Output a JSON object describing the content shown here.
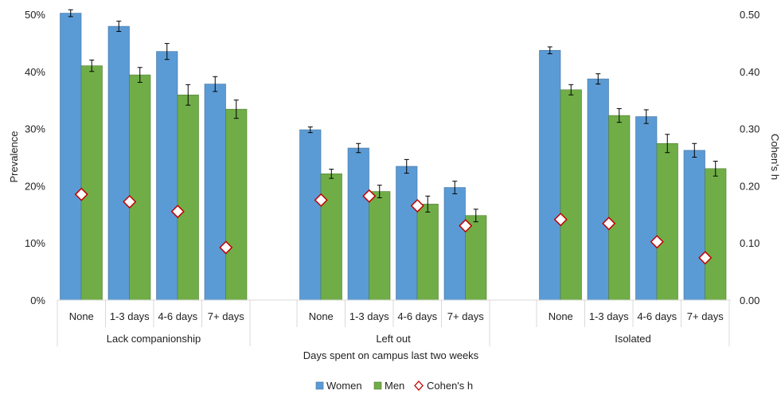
{
  "chart_data": {
    "type": "bar",
    "xlabel": "Days spent on campus last two weeks",
    "ylabel": "Prevalence",
    "y2label": "Cohen's h",
    "ylim": [
      0,
      50
    ],
    "y2lim": [
      0,
      0.5
    ],
    "yticks": [
      "0%",
      "10%",
      "20%",
      "30%",
      "40%",
      "50%"
    ],
    "y2ticks": [
      "0.00",
      "0.10",
      "0.20",
      "0.30",
      "0.40",
      "0.50"
    ],
    "grid": false,
    "legend_position": "bottom",
    "groups": [
      {
        "name": "Lack companionship",
        "categories": [
          "None",
          "1-3 days",
          "4-6 days",
          "7+ days"
        ]
      },
      {
        "name": "Left out",
        "categories": [
          "None",
          "1-3 days",
          "4-6 days",
          "7+ days"
        ]
      },
      {
        "name": "Isolated",
        "categories": [
          "None",
          "1-3 days",
          "4-6 days",
          "7+ days"
        ]
      }
    ],
    "series": [
      {
        "name": "Women",
        "color": "#5b9bd5",
        "values": [
          50.2,
          47.9,
          43.5,
          37.8,
          29.8,
          26.6,
          23.4,
          19.7,
          43.7,
          38.7,
          32.1,
          26.2
        ],
        "errors": [
          0.6,
          0.9,
          1.4,
          1.3,
          0.5,
          0.8,
          1.2,
          1.1,
          0.6,
          0.9,
          1.2,
          1.2
        ]
      },
      {
        "name": "Men",
        "color": "#70ad47",
        "values": [
          41.0,
          39.4,
          35.9,
          33.4,
          22.1,
          19.0,
          16.8,
          14.8,
          36.8,
          32.3,
          27.4,
          23.0
        ],
        "errors": [
          1.0,
          1.3,
          1.8,
          1.6,
          0.8,
          1.1,
          1.4,
          1.1,
          0.9,
          1.2,
          1.6,
          1.3
        ]
      },
      {
        "name": "Cohen's h",
        "color": "#c00000",
        "axis": "secondary",
        "marker": "diamond",
        "values": [
          0.185,
          0.172,
          0.155,
          0.092,
          0.175,
          0.182,
          0.165,
          0.13,
          0.141,
          0.134,
          0.102,
          0.074
        ]
      }
    ]
  }
}
